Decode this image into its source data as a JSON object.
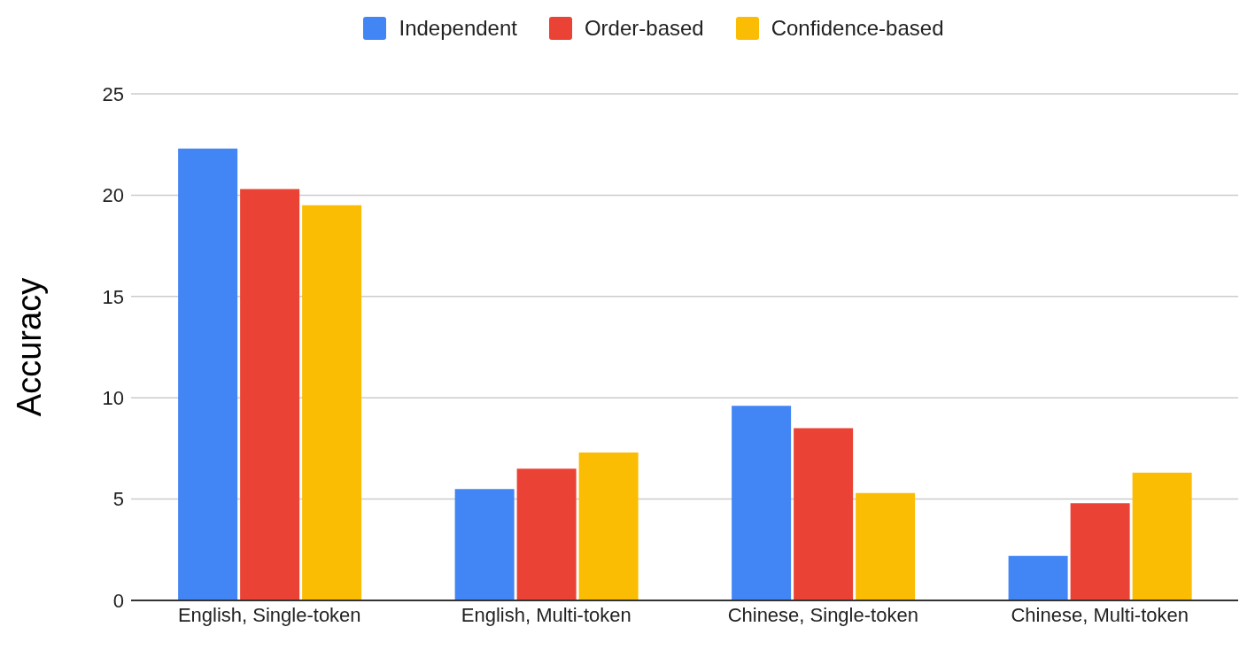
{
  "chart_data": {
    "type": "bar",
    "ylabel": "Accuracy",
    "categories": [
      "English, Single-token",
      "English, Multi-token",
      "Chinese, Single-token",
      "Chinese, Multi-token"
    ],
    "series": [
      {
        "name": "Independent",
        "color": "#4285f4",
        "values": [
          22.3,
          5.5,
          9.6,
          2.2
        ]
      },
      {
        "name": "Order-based",
        "color": "#ea4335",
        "values": [
          20.3,
          6.5,
          8.5,
          4.8
        ]
      },
      {
        "name": "Confidence-based",
        "color": "#fbbc04",
        "values": [
          19.5,
          7.3,
          5.3,
          6.3
        ]
      }
    ],
    "ylim": [
      0,
      25
    ],
    "yticks": [
      0,
      5,
      10,
      15,
      20,
      25
    ],
    "grid": "y",
    "legend": "top"
  }
}
